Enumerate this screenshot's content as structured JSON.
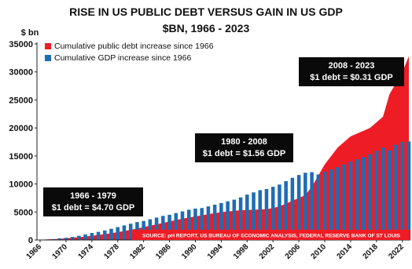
{
  "chart_data": {
    "type": "area",
    "title_lines": [
      "RISE IN US PUBLIC DEBT VERSUS GAIN IN US GDP",
      "$BN, 1966 - 2023"
    ],
    "y_unit_label": "$ bn",
    "ylim": [
      0,
      35000
    ],
    "y_ticks": [
      0,
      5000,
      10000,
      15000,
      20000,
      25000,
      30000,
      35000
    ],
    "y_tick_labels": [
      "0",
      "5000",
      "10000",
      "15000",
      "20000",
      "25000",
      "30000",
      "35000"
    ],
    "x_range": [
      1966,
      2023
    ],
    "x_ticks": [
      1966,
      1970,
      1974,
      1978,
      1982,
      1986,
      1990,
      1994,
      1998,
      2002,
      2006,
      2010,
      2014,
      2018,
      2022
    ],
    "x_tick_labels": [
      "1966",
      "1970",
      "1974",
      "1978",
      "1982",
      "1986",
      "1990",
      "1994",
      "1998",
      "2002",
      "2006",
      "2010",
      "2014",
      "2018",
      "2022"
    ],
    "grid": false,
    "legend_position": "top-left",
    "series": [
      {
        "name": "Cumulative public debt increase since 1966",
        "render": "area",
        "color": "#ee1c25",
        "x": [
          1966,
          1967,
          1968,
          1969,
          1970,
          1971,
          1972,
          1973,
          1974,
          1975,
          1976,
          1977,
          1978,
          1979,
          1980,
          1981,
          1982,
          1983,
          1984,
          1985,
          1986,
          1987,
          1988,
          1989,
          1990,
          1991,
          1992,
          1993,
          1994,
          1995,
          1996,
          1997,
          1998,
          1999,
          2000,
          2001,
          2002,
          2003,
          2004,
          2005,
          2006,
          2007,
          2008,
          2009,
          2010,
          2011,
          2012,
          2013,
          2014,
          2015,
          2016,
          2017,
          2018,
          2019,
          2020,
          2021,
          2022,
          2023
        ],
        "values": [
          0,
          100,
          150,
          200,
          300,
          400,
          500,
          600,
          750,
          900,
          1050,
          1200,
          1400,
          1600,
          1800,
          2050,
          2300,
          2550,
          2800,
          3050,
          3300,
          3550,
          3800,
          4000,
          4200,
          4400,
          4600,
          4800,
          4950,
          5100,
          5200,
          5300,
          5350,
          5400,
          5450,
          5500,
          5700,
          6000,
          6500,
          7000,
          7500,
          8000,
          9500,
          11500,
          13500,
          15000,
          16500,
          17500,
          18500,
          19000,
          19500,
          20000,
          21000,
          22000,
          26000,
          28000,
          30000,
          32800
        ]
      },
      {
        "name": "Cumulative GDP increase since 1966",
        "render": "bar",
        "color": "#1f6cb3",
        "x": [
          1966,
          1967,
          1968,
          1969,
          1970,
          1971,
          1972,
          1973,
          1974,
          1975,
          1976,
          1977,
          1978,
          1979,
          1980,
          1981,
          1982,
          1983,
          1984,
          1985,
          1986,
          1987,
          1988,
          1989,
          1990,
          1991,
          1992,
          1993,
          1994,
          1995,
          1996,
          1997,
          1998,
          1999,
          2000,
          2001,
          2002,
          2003,
          2004,
          2005,
          2006,
          2007,
          2008,
          2009,
          2010,
          2011,
          2012,
          2013,
          2014,
          2015,
          2016,
          2017,
          2018,
          2019,
          2020,
          2021,
          2022,
          2023
        ],
        "values": [
          0,
          50,
          150,
          300,
          400,
          550,
          750,
          1000,
          1250,
          1450,
          1700,
          2000,
          2300,
          2600,
          2900,
          3200,
          3400,
          3700,
          4000,
          4300,
          4500,
          4800,
          5100,
          5400,
          5600,
          5700,
          6000,
          6300,
          6600,
          6900,
          7200,
          7600,
          8100,
          8500,
          8900,
          9100,
          9500,
          9900,
          10500,
          11100,
          11600,
          12000,
          12100,
          11700,
          12200,
          12600,
          13000,
          13500,
          14000,
          14400,
          14800,
          15300,
          15900,
          16500,
          16000,
          17000,
          17500,
          17600
        ]
      }
    ],
    "annotations": [
      {
        "lines": [
          "1966 - 1979",
          "$1 debt = $4.70 GDP"
        ]
      },
      {
        "lines": [
          "1980 - 2008",
          "$1 debt = $1.56 GDP"
        ]
      },
      {
        "lines": [
          "2008 - 2023",
          "$1 debt = $0.31 GDP"
        ]
      }
    ],
    "source": "SOURCE: pH REPORT, US BUREAU OF ECONOMIC ANALYSIS, FEDERAL RESERVE BANK OF ST LOUIS"
  }
}
